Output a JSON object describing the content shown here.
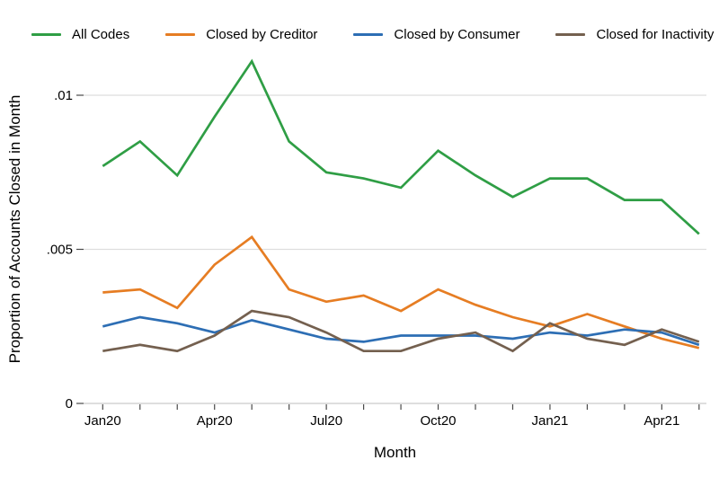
{
  "figure": {
    "xlabel": "Month",
    "ylabel": "Proportion of Accounts Closed in Month"
  },
  "chart_data": {
    "type": "line",
    "title": "",
    "xlabel": "Month",
    "ylabel": "Proportion of Accounts Closed in Month",
    "x": [
      "Jan20",
      "Feb20",
      "Mar20",
      "Apr20",
      "May20",
      "Jun20",
      "Jul20",
      "Aug20",
      "Sep20",
      "Oct20",
      "Nov20",
      "Dec20",
      "Jan21",
      "Feb21",
      "Mar21",
      "Apr21",
      "May21"
    ],
    "x_tick_labels": [
      "Jan20",
      "Apr20",
      "Jul20",
      "Oct20",
      "Jan21",
      "Apr21"
    ],
    "x_tick_label_indices": [
      0,
      3,
      6,
      9,
      12,
      15
    ],
    "y_ticks": [
      0,
      0.005,
      0.01
    ],
    "y_tick_labels": [
      "0",
      ".005",
      ".01"
    ],
    "ylim": [
      0,
      0.0115
    ],
    "grid": "horizontal-light-gray",
    "legend_position": "top",
    "series": [
      {
        "name": "All Codes",
        "color": "#2f9e45",
        "values": [
          0.0077,
          0.0085,
          0.0074,
          0.0093,
          0.0111,
          0.0085,
          0.0075,
          0.0073,
          0.007,
          0.0082,
          0.0074,
          0.0067,
          0.0073,
          0.0073,
          0.0066,
          0.0066,
          0.0055
        ]
      },
      {
        "name": "Closed by Creditor",
        "color": "#e67d23",
        "values": [
          0.0036,
          0.0037,
          0.0031,
          0.0045,
          0.0054,
          0.0037,
          0.0033,
          0.0035,
          0.003,
          0.0037,
          0.0032,
          0.0028,
          0.0025,
          0.0029,
          0.0025,
          0.0021,
          0.0018
        ]
      },
      {
        "name": "Closed by Consumer",
        "color": "#2d6eb4",
        "values": [
          0.0025,
          0.0028,
          0.0026,
          0.0023,
          0.0027,
          0.0024,
          0.0021,
          0.002,
          0.0022,
          0.0022,
          0.0022,
          0.0021,
          0.0023,
          0.0022,
          0.0024,
          0.0023,
          0.0019
        ]
      },
      {
        "name": "Closed for Inactivity",
        "color": "#74604f",
        "values": [
          0.0017,
          0.0019,
          0.0017,
          0.0022,
          0.003,
          0.0028,
          0.0023,
          0.0017,
          0.0017,
          0.0021,
          0.0023,
          0.0017,
          0.0026,
          0.0021,
          0.0019,
          0.0024,
          0.002
        ]
      }
    ],
    "colors": {
      "grid_line": "#dedede",
      "axis_line": "#c9c9c9",
      "tick_mark": "#4a4a4a",
      "text": "#000000"
    }
  }
}
